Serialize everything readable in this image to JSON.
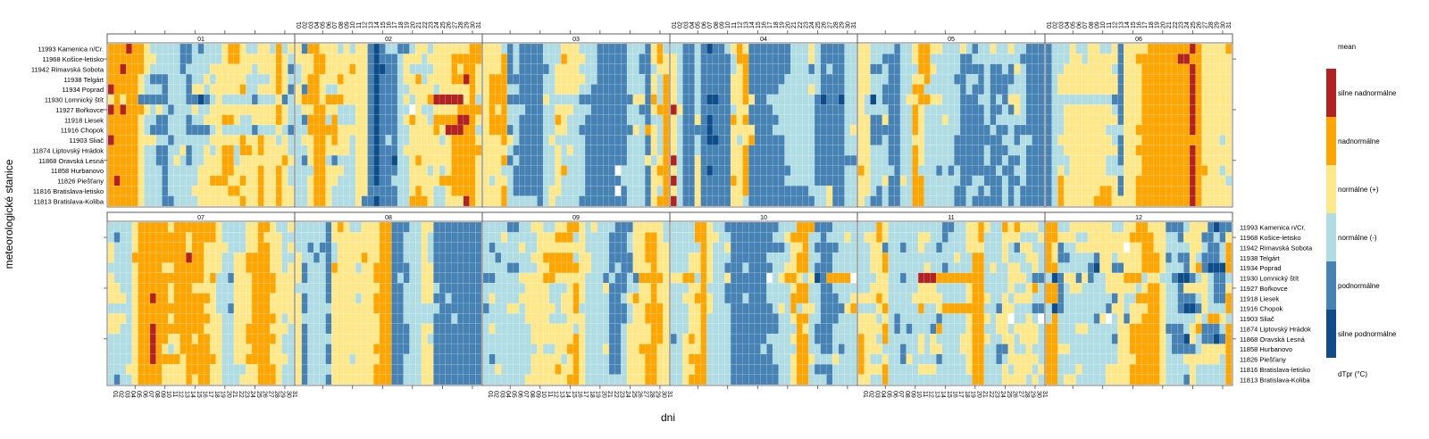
{
  "chart_data": {
    "type": "heatmap",
    "xlabel": "dni",
    "ylabel": "meteorologické stanice",
    "legend_title": "mean",
    "legend_footer": "dTpr (°C)",
    "legend_placement": "right",
    "days": [
      "01",
      "02",
      "03",
      "04",
      "05",
      "06",
      "07",
      "08",
      "09",
      "10",
      "11",
      "12",
      "13",
      "14",
      "15",
      "16",
      "17",
      "18",
      "19",
      "20",
      "21",
      "22",
      "23",
      "24",
      "25",
      "26",
      "27",
      "28",
      "29",
      "30",
      "31"
    ],
    "stations": [
      "11993 Kamenica n/Cr.",
      "11968 Košice-letisko",
      "11942 Rimavská Sobota",
      "11938 Telgárt",
      "11934 Poprad",
      "11930 Lomnický štít",
      "11927 Bořkovce",
      "11918 Liesek",
      "11916 Chopok",
      "11903 Sliač",
      "11874 Liptovský Hrádok",
      "11868 Oravská Lesná",
      "11858 Hurbanovo",
      "11826 Piešťany",
      "11816 Bratislava-letisko",
      "11813 Bratislava-Koliba"
    ],
    "categories": [
      {
        "code": 0,
        "label": "silne podnormálne",
        "color": "#0e4c8a"
      },
      {
        "code": 1,
        "label": "podnormálne",
        "color": "#4682b4"
      },
      {
        "code": 2,
        "label": "normálne (-)",
        "color": "#b0dde4"
      },
      {
        "code": 3,
        "label": "normálne (+)",
        "color": "#ffe88a"
      },
      {
        "code": 4,
        "label": "nadnormálne",
        "color": "#ffa500"
      },
      {
        "code": 5,
        "label": "silne nadnormálne",
        "color": "#b22222"
      }
    ],
    "missing_color": "#ffffff",
    "panels": [
      {
        "month": "01",
        "rows": [
          "4445443222221121222344322332423",
          "4444443322221122222344333333432",
          "4454443222221222233333332333431",
          "4444432111222122323333322223432",
          "5444432221222133233333422333431",
          "3434411111222110123222221222312",
          "5454443232122232233333333333432",
          "4444432211222122333443223333432",
          "4444432111222111123222221222321",
          "5444433322122222233333433433232",
          "4444432211223122323442443433332",
          "4444432211232122333442333333343",
          "4444432221222223333443333433432",
          "4544432221222223344433433433432",
          "4444432221222233333344333433433",
          "4444432221122223333333433433433"
        ]
      },
      {
        "month": "02",
        "rows": [
          "3144333232331012211233233333344.",
          "3334433333331011123332333344444.",
          "2334433334331001123222233343443.",
          "2344333433331011123342333344543.",
          "3144322333331011122333323333343.",
          "3444344433331011123233455555342.",
          "2334433222331011122.322333344443.",
          "2144424222331011123433244445543.",
          "2244444333331011122333343555442.",
          "2334434332331012122333332344443.",
          "2234433332331011123333333344444.",
          "2134421222331011022343333344443.",
          "2224433322331011122333232344443.",
          "2234433222331011222333334444443.",
          "2234432222331111122343322344443.",
          "2234432222311011122444322333543."
        ]
      },
      {
        "month": "03",
        "rows": [
          "3332121111222333222111112221342",
          "3334121111222433322111112211343",
          "3334121111123333222111112211233",
          "3444111111223333322111112221324",
          "3444221111223333221111112221324",
          "3444111111322222111111111331424",
          "3434222111223332221111112211344",
          "3444221111224322211111112221224",
          "3444121111223322111111111324324",
          "3334321111232222211111112221324",
          "3333211111223232211111112221324",
          "3334121111223222211111112223234",
          "3332211111223422211111.22221344",
          "3233211111223222211111122221334",
          "3334211111233222211111.12221324",
          "3334222221232222111111112221344"
        ]
      },
      {
        "month": "04",
        "rows": [
          "2211210112343111111122232111122",
          "3211211111244111111122232111122",
          "3211211111234111111122212121122",
          "3211211111334111111222222111122",
          "3211211111334111112222232111122",
          "3211210011334311222222221011022",
          "5311211111233111122222221111122",
          "3211310111434111112222221111122",
          "3211110111333311122222221111123",
          "3211210011323411111222221111122",
          "3211211111334111111222221111122",
          "5211311111334111111222221111111",
          "3211310111334111111122221111122",
          "5211311111434111111222221111122",
          "3211311111334111111111122231122",
          "5211311111332111111111112231122"
        ]
      },
      {
        "month": "05",
        "rows": [
          "3322221223443322232122322322111",
          "3322111223442222211222222221111",
          "3311211222443222211112112132111",
          "3322211223342222112212111122111",
          "3322111224422222212112111222111",
          "3202111233443322211122121332111",
          "3222211224322222211112112132111",
          "3311311224322232211112122222111",
          "3311111224322222211111211211111",
          "3311211223322222111111112212211",
          "3322211224322222111112111222111",
          "3322211224322222111112112112111",
          "4322221224222121211111121122111",
          "3322311324422222211221112112111",
          "3321211224422222112212112121111",
          "3211211224422222112111112121111"
        ]
      },
      {
        "month": "06",
        "rows": [
          "1222322332231333344444445433334",
          "1222332333331334444444554433333",
          "1223333333321333444444445433333",
          "1233333333331333444444445433333",
          "1233333333331333444444445433333",
          "1222222222211333444444445433333",
          "1223333333321333444444445433333",
          "1223333333331333444444445433333",
          "1223333333222334444444445433333",
          "1233333333321333444444444433323",
          "1223333333331334444444445433333",
          "1222333333221333444444445433333",
          "1232333333222333444444445443323",
          "1243333333331334444444445433332",
          "1243333334431334444444445433333",
          "1243333344433334444444445433333"
        ]
      },
      {
        "month": "07",
        "rows": [
          "2222344444344444443222233443223",
          "2122344444444344443222233433322",
          "3222344444444344333322233443323",
          "3222444444444544333223344443322",
          "2222344443344444333223344443323",
          "3222344444444444342213334444333",
          "3322344444344433332223334444333",
          "3332344544344444432223334443333",
          "2222344444444444332213334443333",
          "3332344444344444433223334444323",
          "3322344544444444333223344443332",
          "2222344544334434433223344444322",
          "2222344543234444433223334443322",
          "2222344544443444443223344443332",
          "2223344443333444433222233444322",
          "2122344443333434433222333444322"
        ]
      },
      {
        "month": "08",
        "rows": [
          "2222213432233344111223311111111",
          "2222213333333344112223211111111",
          "2212112333333344112223211111111",
          "3221212333343344112223211111111",
          "3122214333233444111223311111111",
          "3122213333333444121223311111111",
          "2222213333333344112223321111111",
          "3122213333233444112223311211111",
          "3122223333333444112222221111111",
          "3222213333333344112222211121111",
          "3122213333333344111223311111111",
          "3122223333333344111223211111111",
          "3122213333333444111223311111111",
          "3122213332333344112223311111111",
          "3122223333333444112223311111111",
          "3122213333333444112223311111111"
        ]
      },
      {
        "month": "09",
        "rows": [
          "2222112233223344323222111333332.",
          "2223222223334442322221112334432.",
          "2122223223333333322221112334433.",
          "2212222233444442332221111334433.",
          "2222112223344444332221211333433.",
          "1122223333443333322212112144443.",
          "2222222333322234322231112233433.",
          "2322223333322334322221123433433.",
          "1222332333332334222221112334443.",
          "2222222333322233322221112334443.",
          "2322222233333332322221123333443.",
          "2222222233333334322221123333443.",
          "2222222223223344322231123344433.",
          "2122222233333234322221123334433.",
          "2232222233334334322221123334433.",
          "2222222333333344322222223334433."
        ]
      },
      {
        "month": "10",
        "rows": [
          "2222443221111111112224441112222",
          "2222443322111111122344422122232",
          "2222243223111111111233421111222",
          "2223343222111111222234422112222",
          "2223343221112111122334421112222",
          "3344243223111111.2344323014444",
          "2223342221111111222234422112222",
          "2233443221112111222244422111223",
          "2223343222111111123242332111134",
          "2223342222111111112234422111222",
          "2223342222111111112224321112222",
          "1234342222111111222234421112222",
          "2233342222111112122224422112122",
          "2234442222111111122234432223222",
          "2233442222111111112234421112222",
          "2234442222111111112234422212222"
        ]
      },
      {
        "month": "11",
        "rows": [
          "2224322222222211223343224343332",
          "2334322222332212223342223332223",
          "2233122122322122223332223213322",
          "2233422222222222322442223222332",
          "2233422222232212222442322332232",
          "2223322122555444444442222333211",
          "2233322222333222223442222322342",
          "3334322223333322223443223233322",
          "2223422222422344444442213322211",
          "3332321222222122223443233.2232.",
          "3333421212221422223442233233332",
          "4332422222323222233443223323332",
          "4333222122323322233442211322322",
          "4322322132222122223442212333332",
          "4333422222333222223442223233323",
          "3322422222222222222442223333232"
        ]
      },
      {
        "month": "12",
        "rows": [
          "4422333333322334433311123331011",
          "4433322333333344443322133311213",
          "4312233333333.33443322223321124",
          "4311222213323333444312113211124",
          "4422222103311333444322213410004",
          "2013313122333444233221001232112",
          "4412332222333332344322133332113",
          "4412222222213224444322111232114",
          "2012222222133233344322100132224",
          "2422222213.23133444322222324432",
          "4422233222223344444311123411124",
          "4422222222213344444321103211014",
          "4433222222223344444321111233334",
          "4422222222223334444322233333324",
          "4422232222333344444322223222224",
          "4423322222333344444322213222224"
        ]
      }
    ]
  }
}
